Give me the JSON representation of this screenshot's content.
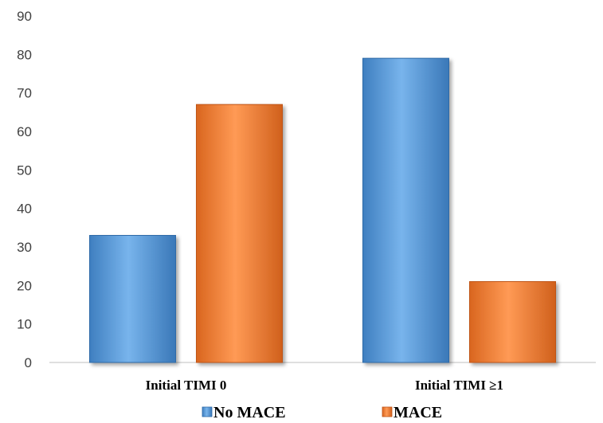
{
  "chart_data": {
    "type": "bar",
    "title": "",
    "xlabel": "",
    "ylabel": "",
    "categories": [
      "Initial TIMI 0",
      "Initial TIMI ≥1"
    ],
    "series": [
      {
        "name": "No MACE",
        "values": [
          33,
          79
        ],
        "color": "#5b9bd5"
      },
      {
        "name": "MACE",
        "values": [
          67,
          21
        ],
        "color": "#ed7d31"
      }
    ],
    "ylim": [
      0,
      90
    ],
    "yticks": [
      0,
      10,
      20,
      30,
      40,
      50,
      60,
      70,
      80,
      90
    ],
    "grid": false,
    "legend": "bottom"
  }
}
